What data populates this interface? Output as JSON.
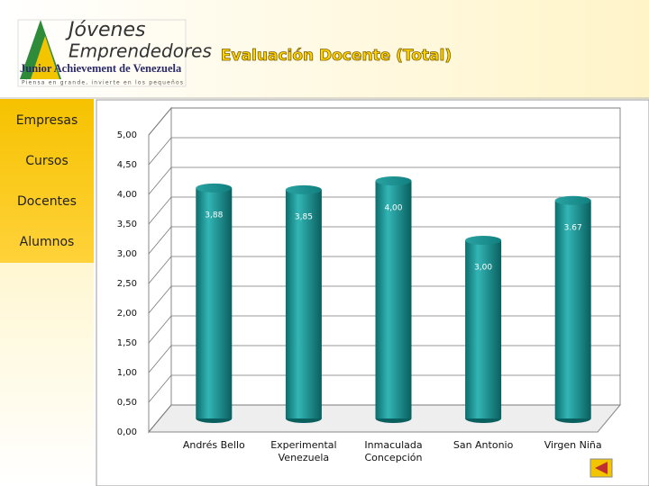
{
  "logo": {
    "line1": "Jóvenes",
    "line2": "Emprendedores",
    "org": "Junior Achievement de Venezuela",
    "slogan": "Piensa en grande, invierte en los pequeños"
  },
  "menu": [
    "Empresas",
    "Cursos",
    "Docentes",
    "Alumnos"
  ],
  "chart_data": {
    "type": "bar",
    "title": "Evaluación Docente (Total)",
    "categories": [
      "Andrés Bello",
      "Experimental Venezuela",
      "Inmaculada Concepción",
      "San Antonio",
      "Virgen Niña"
    ],
    "values": [
      3.88,
      3.85,
      4.0,
      3.0,
      3.67
    ],
    "value_labels": [
      "3,88",
      "3,85",
      "4,00",
      "3,00",
      "3.67"
    ],
    "color": "#1a9a9a",
    "ylim": [
      0,
      5
    ],
    "yticks": [
      {
        "value": 0,
        "label": "0,00"
      },
      {
        "value": 0.5,
        "label": "0,50"
      },
      {
        "value": 1,
        "label": "1,00"
      },
      {
        "value": 1.5,
        "label": "1,50"
      },
      {
        "value": 2,
        "label": "2,00"
      },
      {
        "value": 2.5,
        "label": "2,50"
      },
      {
        "value": 3,
        "label": "3,00"
      },
      {
        "value": 3.5,
        "label": "3,50"
      },
      {
        "value": 4,
        "label": "4,00"
      },
      {
        "value": 4.5,
        "label": "4,50"
      },
      {
        "value": 5,
        "label": "5,00"
      }
    ],
    "grid": true
  }
}
